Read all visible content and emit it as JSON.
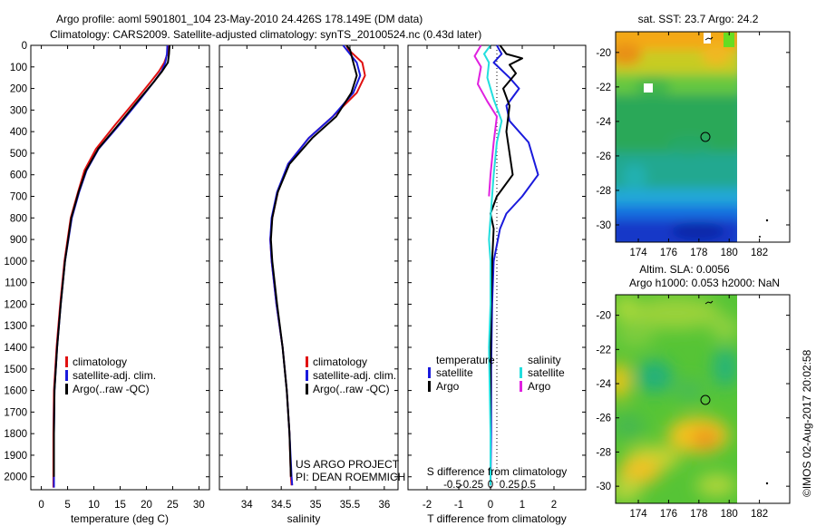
{
  "header": {
    "title_line1": "Argo profile: aoml 5901801_104 23-May-2010 24.426S 178.149E (DM data)",
    "title_line2": "Climatology: CARS2009. Satellite-adjusted climatology: synTS_20100524.nc (0.43d later)"
  },
  "colors": {
    "climatology": "#e01010",
    "satellite": "#1a1adc",
    "argo": "#000000",
    "salinity_satellite": "#22dede",
    "salinity_argo": "#e020e0"
  },
  "depth_axis": {
    "ticks": [
      0,
      100,
      200,
      300,
      400,
      500,
      600,
      700,
      800,
      900,
      1000,
      1100,
      1200,
      1300,
      1400,
      1500,
      1600,
      1700,
      1800,
      1900,
      2000
    ],
    "ylim": [
      0,
      2060
    ]
  },
  "chart_data": [
    {
      "type": "line",
      "xlabel": "temperature (deg C)",
      "xlim": [
        -2,
        32
      ],
      "xticks": [
        0,
        5,
        10,
        15,
        20,
        25,
        30
      ],
      "legend": [
        "climatology",
        "satellite-adj. clim.",
        "Argo(..raw -QC)"
      ],
      "series": [
        {
          "name": "climatology",
          "color": "#e01010",
          "x": [
            24.2,
            24.0,
            23.4,
            22.4,
            20.8,
            17.8,
            14.0,
            10.4,
            8.2,
            7.0,
            5.6,
            4.4,
            3.6,
            2.9,
            2.4,
            2.3,
            2.3,
            2.3
          ],
          "y": [
            0,
            40,
            80,
            120,
            170,
            260,
            370,
            480,
            580,
            680,
            800,
            1000,
            1200,
            1400,
            1600,
            1800,
            2000,
            2050
          ]
        },
        {
          "name": "satellite-adj. clim.",
          "color": "#1a1adc",
          "x": [
            24.0,
            23.9,
            23.6,
            22.9,
            21.4,
            18.5,
            14.8,
            10.9,
            8.6,
            7.2,
            5.8,
            4.5,
            3.7,
            3.0,
            2.5,
            2.4,
            2.4,
            2.4
          ],
          "y": [
            0,
            40,
            80,
            120,
            170,
            260,
            370,
            480,
            580,
            680,
            800,
            1000,
            1200,
            1400,
            1600,
            1800,
            2000,
            2050
          ]
        },
        {
          "name": "Argo(..raw -QC)",
          "color": "#000000",
          "x": [
            24.4,
            24.3,
            24.1,
            23.0,
            21.4,
            18.3,
            14.6,
            10.8,
            8.5,
            7.1,
            5.7,
            4.5,
            3.7,
            3.0,
            2.5,
            2.4,
            2.4
          ],
          "y": [
            0,
            40,
            80,
            120,
            170,
            260,
            370,
            480,
            580,
            680,
            800,
            1000,
            1200,
            1400,
            1600,
            1800,
            2000
          ]
        }
      ]
    },
    {
      "type": "line",
      "xlabel": "salinity",
      "xlim": [
        33.6,
        36.2
      ],
      "xticks": [
        34,
        34.5,
        35,
        35.5,
        36
      ],
      "legend": [
        "climatology",
        "satellite-adj. clim.",
        "Argo(..raw -QC)"
      ],
      "annotation": [
        "US ARGO PROJECT",
        "PI: DEAN ROEMMICH"
      ],
      "series": [
        {
          "name": "climatology",
          "color": "#e01010",
          "x": [
            35.45,
            35.48,
            35.68,
            35.72,
            35.6,
            35.25,
            34.9,
            34.6,
            34.45,
            34.37,
            34.34,
            34.36,
            34.43,
            34.52,
            34.58,
            34.62,
            34.64,
            34.65
          ],
          "y": [
            0,
            20,
            80,
            140,
            220,
            330,
            430,
            550,
            680,
            800,
            900,
            1000,
            1200,
            1400,
            1600,
            1800,
            2000,
            2040
          ]
        },
        {
          "name": "satellite-adj. clim.",
          "color": "#1a1adc",
          "x": [
            35.4,
            35.45,
            35.6,
            35.65,
            35.55,
            35.25,
            34.9,
            34.6,
            34.44,
            34.36,
            34.34,
            34.36,
            34.43,
            34.52,
            34.58,
            34.62,
            34.65,
            34.66
          ],
          "y": [
            0,
            20,
            80,
            140,
            220,
            330,
            430,
            550,
            680,
            800,
            900,
            1000,
            1200,
            1400,
            1600,
            1800,
            2000,
            2040
          ]
        },
        {
          "name": "Argo(..raw -QC)",
          "color": "#000000",
          "x": [
            35.45,
            35.5,
            35.55,
            35.6,
            35.52,
            35.3,
            34.95,
            34.62,
            34.45,
            34.37,
            34.35,
            34.37,
            34.44,
            34.52,
            34.58,
            34.62,
            34.64
          ],
          "y": [
            0,
            20,
            80,
            140,
            220,
            330,
            430,
            550,
            680,
            800,
            900,
            1000,
            1200,
            1400,
            1600,
            1800,
            2000
          ]
        }
      ]
    },
    {
      "type": "line",
      "xlabel": "T difference from climatology",
      "x2label": "S difference from climatology",
      "xlim": [
        -2.6,
        3.0
      ],
      "xticks": [
        -2,
        -1,
        0,
        1,
        2
      ],
      "x2ticks": [
        -0.5,
        -0.25,
        0,
        0.25,
        0.5
      ],
      "legend": [
        "temperature",
        "satellite",
        "Argo",
        "salinity",
        "satellite",
        "Argo"
      ],
      "series": [
        {
          "name": "satellite",
          "group": "temperature",
          "color": "#1a1adc",
          "x": [
            0.2,
            0.35,
            0.1,
            0.6,
            0.9,
            0.5,
            0.6,
            1.2,
            1.5,
            1.0,
            0.5,
            0.3,
            0.1,
            0.05,
            0.02,
            0.02,
            0.0
          ],
          "y": [
            0,
            40,
            80,
            150,
            200,
            280,
            350,
            450,
            600,
            700,
            780,
            850,
            1000,
            1200,
            1500,
            1800,
            2040
          ]
        },
        {
          "name": "Argo",
          "group": "temperature",
          "color": "#000000",
          "x": [
            0.3,
            0.5,
            1.0,
            0.6,
            0.8,
            0.4,
            0.6,
            0.5,
            0.7,
            0.2,
            0.0,
            0.1,
            0.05,
            0.02,
            0.0,
            0.0
          ],
          "y": [
            0,
            40,
            60,
            90,
            130,
            200,
            280,
            400,
            600,
            700,
            780,
            850,
            1000,
            1200,
            1500,
            2000
          ]
        },
        {
          "name": "satellite",
          "group": "salinity",
          "color": "#22dede",
          "x": [
            0.0,
            -0.2,
            -0.05,
            -0.1,
            0.1,
            0.35,
            0.2,
            0.1,
            0.0,
            -0.05,
            0.0,
            0.0,
            -0.05,
            0.0,
            0.0
          ],
          "y": [
            0,
            40,
            80,
            150,
            250,
            350,
            450,
            600,
            800,
            900,
            1000,
            1200,
            1400,
            1800,
            2040
          ]
        },
        {
          "name": "Argo",
          "group": "salinity",
          "color": "#e020e0",
          "x": [
            -0.3,
            -0.5,
            -0.3,
            -0.4,
            -0.1,
            0.2,
            0.1,
            0.0,
            -0.05
          ],
          "y": [
            0,
            50,
            100,
            180,
            260,
            330,
            450,
            600,
            700
          ]
        }
      ]
    },
    {
      "type": "heatmap",
      "title": "sat. SST: 23.7 Argo: 24.2",
      "xticks": [
        174,
        176,
        178,
        180,
        182
      ],
      "yticks": [
        -20,
        -22,
        -24,
        -26,
        -28,
        -30
      ],
      "xlim": [
        172.5,
        184
      ],
      "ylim": [
        -31,
        -18.8
      ],
      "marker": {
        "lon": 178.15,
        "lat": -24.43
      }
    },
    {
      "type": "heatmap",
      "title": "Altim. SLA: 0.0056",
      "subtitle": "Argo h1000: 0.053 h2000: NaN",
      "xticks": [
        174,
        176,
        178,
        180,
        182
      ],
      "yticks": [
        -20,
        -22,
        -24,
        -26,
        -28,
        -30
      ],
      "xlim": [
        172.5,
        184
      ],
      "ylim": [
        -31,
        -18.8
      ],
      "marker": {
        "lon": 178.15,
        "lat": -24.43
      }
    }
  ],
  "footer": {
    "credit": "©IMOS 02-Aug-2017 20:02:58"
  }
}
